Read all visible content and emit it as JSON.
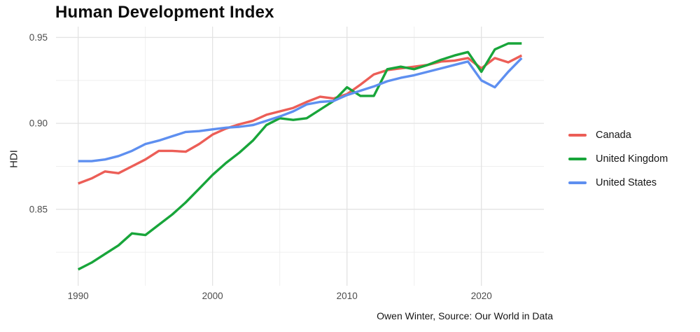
{
  "title": "Human Development Index",
  "caption": "Owen Winter, Source: Our World in Data",
  "chart_data": {
    "type": "line",
    "title": "Human Development Index",
    "ylabel": "HDI",
    "caption": "Owen Winter, Source: Our World in Data",
    "grid": true,
    "legend_position": "right",
    "background": "#ffffff",
    "grid_major_color": "#e3e3e3",
    "grid_minor_color": "#efefef",
    "x": [
      1990,
      1991,
      1992,
      1993,
      1994,
      1995,
      1996,
      1997,
      1998,
      1999,
      2000,
      2001,
      2002,
      2003,
      2004,
      2005,
      2006,
      2007,
      2008,
      2009,
      2010,
      2011,
      2012,
      2013,
      2014,
      2015,
      2016,
      2017,
      2018,
      2019,
      2020,
      2021,
      2022,
      2023
    ],
    "series": [
      {
        "name": "Canada",
        "color": "#ec5e57",
        "values": [
          0.865,
          0.868,
          0.872,
          0.871,
          0.875,
          0.879,
          0.884,
          0.884,
          0.8835,
          0.888,
          0.8935,
          0.897,
          0.8995,
          0.9015,
          0.905,
          0.907,
          0.909,
          0.9125,
          0.9155,
          0.9145,
          0.917,
          0.9225,
          0.9285,
          0.931,
          0.932,
          0.933,
          0.934,
          0.936,
          0.9365,
          0.938,
          0.932,
          0.938,
          0.9355,
          0.9395
        ]
      },
      {
        "name": "United Kingdom",
        "color": "#18a53a",
        "values": [
          0.815,
          0.819,
          0.824,
          0.829,
          0.836,
          0.835,
          0.841,
          0.847,
          0.854,
          0.862,
          0.87,
          0.877,
          0.883,
          0.89,
          0.899,
          0.903,
          0.902,
          0.903,
          0.908,
          0.913,
          0.921,
          0.916,
          0.916,
          0.9315,
          0.933,
          0.9315,
          0.934,
          0.937,
          0.9395,
          0.9415,
          0.93,
          0.943,
          0.9465,
          0.9465
        ]
      },
      {
        "name": "United States",
        "color": "#5e8ff0",
        "values": [
          0.878,
          0.878,
          0.879,
          0.881,
          0.884,
          0.888,
          0.89,
          0.8925,
          0.895,
          0.8955,
          0.8965,
          0.8975,
          0.898,
          0.899,
          0.9015,
          0.904,
          0.907,
          0.911,
          0.9125,
          0.913,
          0.9165,
          0.919,
          0.9215,
          0.9245,
          0.9265,
          0.928,
          0.93,
          0.932,
          0.934,
          0.936,
          0.925,
          0.921,
          0.93,
          0.938
        ]
      }
    ],
    "x_axis": {
      "major_ticks": [
        1990,
        2000,
        2010,
        2020
      ],
      "labels": [
        "1990",
        "2000",
        "2010",
        "2020"
      ],
      "minor_ticks": [
        1995,
        2005,
        2015
      ],
      "lim": [
        1988.35,
        2024.65
      ]
    },
    "y_axis": {
      "major_ticks": [
        0.85,
        0.9,
        0.95
      ],
      "labels": [
        "0.85",
        "0.90",
        "0.95"
      ],
      "minor_ticks": [
        0.825,
        0.875,
        0.925
      ],
      "lim": [
        0.8055,
        0.9563
      ]
    }
  }
}
